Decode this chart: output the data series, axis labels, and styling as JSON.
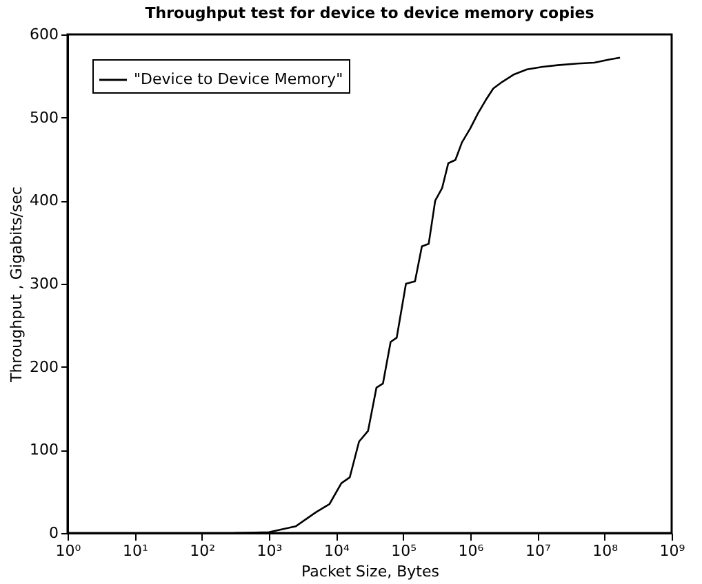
{
  "chart_data": {
    "type": "line",
    "title": "Throughput test for device to device memory copies",
    "xlabel": "Packet Size, Bytes",
    "ylabel": "Throughput , Gigabits/sec",
    "log": "x",
    "grid": false,
    "legend": "top left",
    "marker": "none",
    "line_style": "solid",
    "xlim": [
      1,
      1000000000
    ],
    "xticks": [
      {
        "value": 1,
        "label": "10⁰"
      },
      {
        "value": 10,
        "label": "10¹"
      },
      {
        "value": 100,
        "label": "10²"
      },
      {
        "value": 1000,
        "label": "10³"
      },
      {
        "value": 10000,
        "label": "10⁴"
      },
      {
        "value": 100000,
        "label": "10⁵"
      },
      {
        "value": 1000000,
        "label": "10⁶"
      },
      {
        "value": 10000000,
        "label": "10⁷"
      },
      {
        "value": 100000000,
        "label": "10⁸"
      },
      {
        "value": 1000000000,
        "label": "10⁹"
      }
    ],
    "ylim": [
      0,
      600
    ],
    "yticks": [
      0,
      100,
      200,
      300,
      400,
      500,
      600
    ],
    "series": [
      {
        "name": "\"Device to Device Memory\"",
        "color": "#000000",
        "x": [
          300,
          1000,
          2500,
          5000,
          8000,
          12000,
          16000,
          22000,
          30000,
          40000,
          50000,
          65000,
          80000,
          110000,
          150000,
          190000,
          240000,
          300000,
          380000,
          470000,
          600000,
          750000,
          1000000,
          1300000,
          1700000,
          2200000,
          3000000,
          4500000,
          7000000,
          12000000,
          20000000,
          40000000,
          70000000,
          120000000,
          170000000
        ],
        "values": [
          0,
          1,
          8,
          25,
          35,
          60,
          67,
          110,
          123,
          175,
          180,
          230,
          235,
          300,
          303,
          345,
          348,
          400,
          415,
          445,
          449,
          470,
          487,
          505,
          521,
          535,
          543,
          552,
          558,
          561,
          563,
          565,
          566,
          570,
          572
        ]
      }
    ]
  }
}
